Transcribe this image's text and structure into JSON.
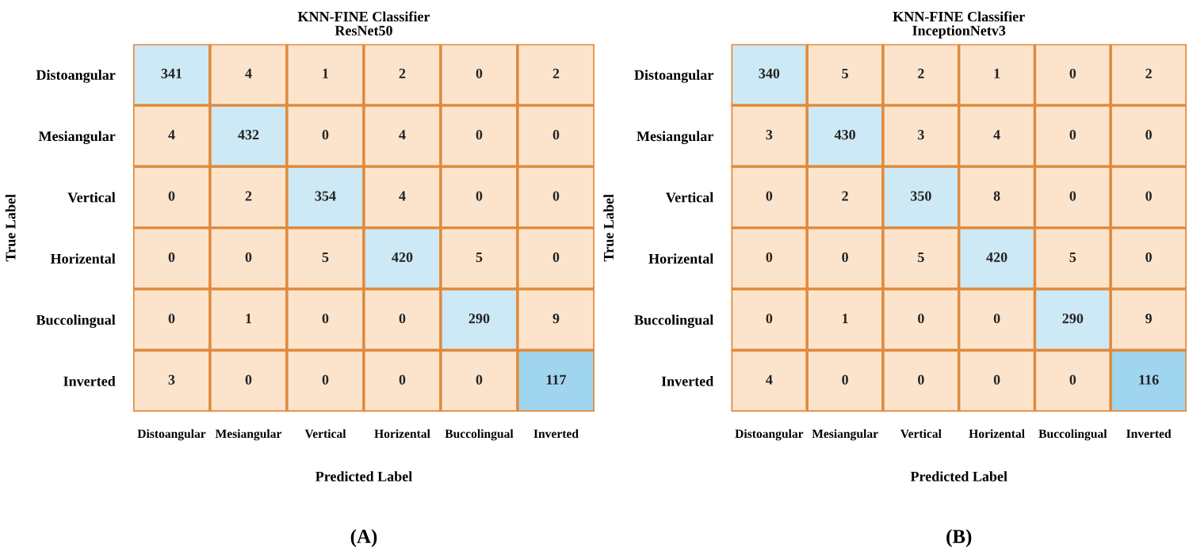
{
  "chart_data": [
    {
      "type": "heatmap",
      "title": "KNN-FINE Classifier",
      "subtitle": "ResNet50",
      "xlabel": "Predicted Label",
      "ylabel": "True Label",
      "categories": [
        "Distoangular",
        "Mesiangular",
        "Vertical",
        "Horizental",
        "Buccolingual",
        "Inverted"
      ],
      "y_categories": [
        "Distoangular",
        "Mesiangular",
        "Vertical",
        "Horizental",
        "Buccolingual",
        "Inverted"
      ],
      "cells": [
        [
          341,
          4,
          1,
          2,
          0,
          2
        ],
        [
          4,
          432,
          0,
          4,
          0,
          0
        ],
        [
          0,
          2,
          354,
          4,
          0,
          0
        ],
        [
          0,
          0,
          5,
          420,
          5,
          0
        ],
        [
          0,
          1,
          0,
          0,
          290,
          9
        ],
        [
          3,
          0,
          0,
          0,
          0,
          117
        ]
      ],
      "colors": [
        [
          "#cde9f5",
          "#fce4cc",
          "#fce4cc",
          "#fce4cc",
          "#fce4cc",
          "#fce4cc"
        ],
        [
          "#fce4cc",
          "#cde9f5",
          "#fce4cc",
          "#fce4cc",
          "#fce4cc",
          "#fce4cc"
        ],
        [
          "#fce4cc",
          "#fce4cc",
          "#cde9f5",
          "#fce4cc",
          "#fce4cc",
          "#fce4cc"
        ],
        [
          "#fce4cc",
          "#fce4cc",
          "#fce4cc",
          "#cde9f5",
          "#fce4cc",
          "#fce4cc"
        ],
        [
          "#fce4cc",
          "#fce4cc",
          "#fce4cc",
          "#fce4cc",
          "#cde9f5",
          "#fce4cc"
        ],
        [
          "#fce4cc",
          "#fce4cc",
          "#fce4cc",
          "#fce4cc",
          "#fce4cc",
          "#9fd5ee"
        ]
      ],
      "data_labels": true,
      "annotations": [
        "(A)"
      ]
    },
    {
      "type": "heatmap",
      "title": "KNN-FINE Classifier",
      "subtitle": "InceptionNetv3",
      "xlabel": "Predicted Label",
      "ylabel": "True Label",
      "categories": [
        "Distoangular",
        "Mesiangular",
        "Vertical",
        "Horizental",
        "Buccolingual",
        "Inverted"
      ],
      "y_categories": [
        "Distoangular",
        "Mesiangular",
        "Vertical",
        "Horizental",
        "Buccolingual",
        "Inverted"
      ],
      "cells": [
        [
          340,
          5,
          2,
          1,
          0,
          2
        ],
        [
          3,
          430,
          3,
          4,
          0,
          0
        ],
        [
          0,
          2,
          350,
          8,
          0,
          0
        ],
        [
          0,
          0,
          5,
          420,
          5,
          0
        ],
        [
          0,
          1,
          0,
          0,
          290,
          9
        ],
        [
          4,
          0,
          0,
          0,
          0,
          116
        ]
      ],
      "colors": [
        [
          "#cde9f5",
          "#fce4cc",
          "#fce4cc",
          "#fce4cc",
          "#fce4cc",
          "#fce4cc"
        ],
        [
          "#fce4cc",
          "#cde9f5",
          "#fce4cc",
          "#fce4cc",
          "#fce4cc",
          "#fce4cc"
        ],
        [
          "#fce4cc",
          "#fce4cc",
          "#cde9f5",
          "#fce4cc",
          "#fce4cc",
          "#fce4cc"
        ],
        [
          "#fce4cc",
          "#fce4cc",
          "#fce4cc",
          "#cde9f5",
          "#fce4cc",
          "#fce4cc"
        ],
        [
          "#fce4cc",
          "#fce4cc",
          "#fce4cc",
          "#fce4cc",
          "#cde9f5",
          "#fce4cc"
        ],
        [
          "#fce4cc",
          "#fce4cc",
          "#fce4cc",
          "#fce4cc",
          "#fce4cc",
          "#9fd5ee"
        ]
      ],
      "data_labels": true,
      "annotations": [
        "(B)"
      ]
    }
  ]
}
